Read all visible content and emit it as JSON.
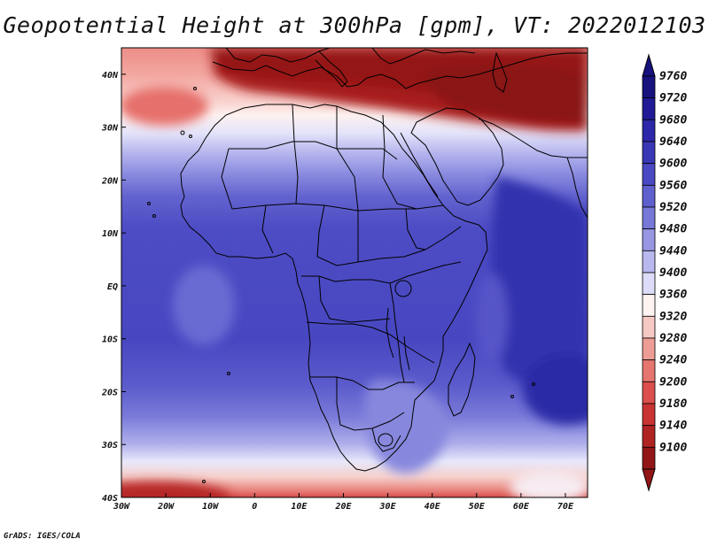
{
  "title": "Geopotential Height at 300hPa [gpm], VT: 2022012103",
  "credit": "GrADS: IGES/COLA",
  "map": {
    "lon_range": [
      -30,
      75
    ],
    "lat_range": [
      -40,
      45
    ],
    "lon_ticks": [
      {
        "value": -30,
        "label": "30W"
      },
      {
        "value": -20,
        "label": "20W"
      },
      {
        "value": -10,
        "label": "10W"
      },
      {
        "value": 0,
        "label": "0"
      },
      {
        "value": 10,
        "label": "10E"
      },
      {
        "value": 20,
        "label": "20E"
      },
      {
        "value": 30,
        "label": "30E"
      },
      {
        "value": 40,
        "label": "40E"
      },
      {
        "value": 50,
        "label": "50E"
      },
      {
        "value": 60,
        "label": "60E"
      },
      {
        "value": 70,
        "label": "70E"
      }
    ],
    "lat_ticks": [
      {
        "value": 40,
        "label": "40N"
      },
      {
        "value": 30,
        "label": "30N"
      },
      {
        "value": 20,
        "label": "20N"
      },
      {
        "value": 10,
        "label": "10N"
      },
      {
        "value": 0,
        "label": "EQ"
      },
      {
        "value": -10,
        "label": "10S"
      },
      {
        "value": -20,
        "label": "20S"
      },
      {
        "value": -30,
        "label": "30S"
      },
      {
        "value": -40,
        "label": "40S"
      }
    ]
  },
  "colorbar": {
    "levels": [
      {
        "label": "9760",
        "color": "#16127e"
      },
      {
        "label": "9720",
        "color": "#211a96"
      },
      {
        "label": "9680",
        "color": "#2c27a8"
      },
      {
        "label": "9640",
        "color": "#3a37b6"
      },
      {
        "label": "9600",
        "color": "#4a48c2"
      },
      {
        "label": "9560",
        "color": "#5f5fcd"
      },
      {
        "label": "9520",
        "color": "#7878d8"
      },
      {
        "label": "9480",
        "color": "#9696e3"
      },
      {
        "label": "9440",
        "color": "#b8b8ee"
      },
      {
        "label": "9400",
        "color": "#dcdcf8"
      },
      {
        "label": "9360",
        "color": "#fdf3f1"
      },
      {
        "label": "9320",
        "color": "#f6c8c3"
      },
      {
        "label": "9280",
        "color": "#ee9c96"
      },
      {
        "label": "9240",
        "color": "#e6756f"
      },
      {
        "label": "9200",
        "color": "#dd4f4c"
      },
      {
        "label": "9180",
        "color": "#c93432"
      },
      {
        "label": "9140",
        "color": "#b02323"
      },
      {
        "label": "9100",
        "color": "#931616"
      }
    ],
    "top_arrow_color": "#16127e",
    "bottom_arrow_color": "#931616"
  }
}
